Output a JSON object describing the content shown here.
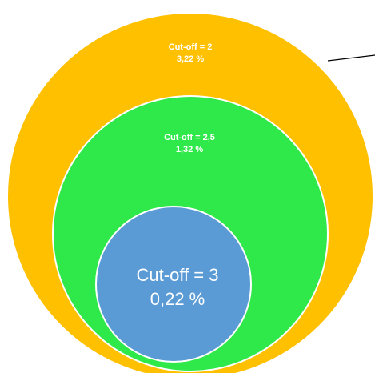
{
  "diagram": {
    "type": "nested-circles",
    "colors": {
      "outer": "#FFC000",
      "middle": "#2FE84A",
      "inner": "#5B9BD5",
      "stroke": "#FFFFFF",
      "pointer": "#000000"
    },
    "outer": {
      "label": "Cut-off = 2",
      "value": "3,22 %"
    },
    "middle": {
      "label": "Cut-off = 2,5",
      "value": "1,32 %"
    },
    "inner": {
      "label": "Cut-off = 3",
      "value": "0,22 %"
    }
  }
}
